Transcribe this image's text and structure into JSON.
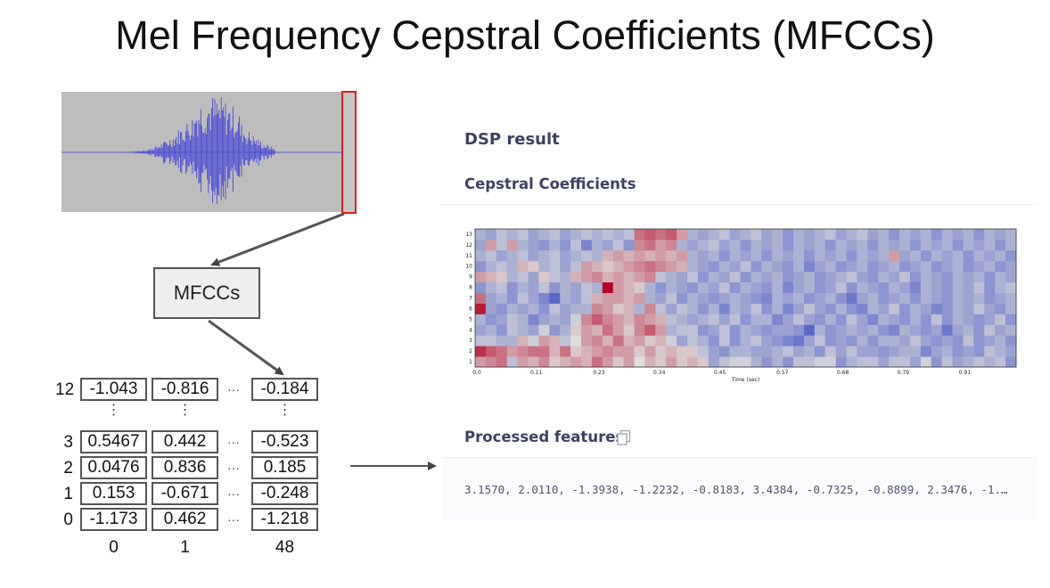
{
  "title": "Mel Frequency Cepstral Coefficients (MFCCs)",
  "mfcc_box_label": "MFCCs",
  "matrix": {
    "rows": [
      {
        "label": "12",
        "values": [
          "-1.043",
          "-0.816",
          "-0.184"
        ]
      },
      {
        "label": "3",
        "values": [
          "0.5467",
          "0.442",
          "-0.523"
        ]
      },
      {
        "label": "2",
        "values": [
          "0.0476",
          "0.836",
          "0.185"
        ]
      },
      {
        "label": "1",
        "values": [
          "0.153",
          "-0.671",
          "-0.248"
        ]
      },
      {
        "label": "0",
        "values": [
          "-1.173",
          "0.462",
          "-1.218"
        ]
      }
    ],
    "col_labels": [
      "0",
      "1",
      "48"
    ],
    "ellipsis_h": "···",
    "ellipsis_v": "⋮"
  },
  "dsp": {
    "heading": "DSP result",
    "subheading": "Cepstral Coefficients",
    "features_heading": "Processed features",
    "features_value": "3.1570, 2.0110, -1.3938, -1.2232, -0.8183, 3.4384, -0.7325, -0.8899, 2.3476, -1.…"
  },
  "chart_data": {
    "type": "heatmap",
    "xlabel": "Time (sec)",
    "ylabel": "",
    "x_ticks": [
      "0.0",
      "0.11",
      "0.23",
      "0.34",
      "0.45",
      "0.57",
      "0.68",
      "0.79",
      "0.91"
    ],
    "y_ticks": [
      "1",
      "2",
      "3",
      "4",
      "5",
      "6",
      "7",
      "8",
      "9",
      "10",
      "11",
      "12",
      "13"
    ],
    "colormap": [
      "#3b4cc0",
      "#dddddd",
      "#b40426"
    ],
    "value_range": [
      -1,
      1
    ],
    "grid": [
      [
        0.3,
        0.4,
        0.5,
        -0.2,
        0.3,
        0.2,
        0.4,
        0.1,
        0.2,
        0.3,
        0.2,
        0.5,
        0.3,
        0.1,
        0.3,
        0.0,
        0.2,
        0.1,
        0.3,
        0.1,
        0.2,
        0.1,
        -0.4,
        -0.2,
        -0.1,
        -0.1,
        -0.3,
        -0.5,
        -0.3,
        -0.5,
        -0.2,
        -0.2,
        -0.1,
        -0.1,
        -0.5,
        -0.3,
        -0.2,
        -0.2,
        -0.4,
        -0.2,
        -0.2,
        -0.4,
        -0.1,
        -0.5,
        -0.2,
        -0.4,
        -0.3,
        -0.2,
        -0.3,
        -0.2,
        -0.5
      ],
      [
        0.8,
        0.6,
        0.5,
        0.3,
        0.4,
        0.5,
        0.5,
        0.2,
        0.5,
        0.1,
        0.2,
        0.3,
        0.4,
        0.3,
        0.3,
        0.1,
        0.3,
        0.1,
        0.2,
        0.1,
        0.1,
        -0.2,
        -0.4,
        -0.5,
        -0.3,
        -0.3,
        -0.4,
        -0.4,
        -0.3,
        -0.2,
        -0.4,
        -0.3,
        -0.5,
        -0.2,
        -0.4,
        -0.2,
        -0.4,
        -0.4,
        -0.5,
        -0.4,
        -0.3,
        -0.3,
        -0.6,
        -0.4,
        -0.3,
        -0.5,
        -0.4,
        -0.5,
        -0.2,
        -0.3,
        -0.4
      ],
      [
        -0.2,
        -0.2,
        -0.3,
        -0.3,
        0.2,
        -0.1,
        0.3,
        0.2,
        -0.2,
        0.0,
        0.3,
        0.4,
        0.2,
        0.5,
        0.2,
        0.3,
        0.1,
        0.2,
        -0.1,
        -0.4,
        -0.2,
        -0.3,
        -0.5,
        -0.2,
        -0.5,
        -0.3,
        -0.2,
        -0.4,
        -0.5,
        -0.6,
        -0.7,
        -0.4,
        -0.2,
        -0.5,
        -0.4,
        -0.5,
        -0.3,
        -0.5,
        -0.3,
        -0.3,
        -0.4,
        -0.2,
        -0.4,
        -0.5,
        -0.4,
        -0.5,
        -0.2,
        -0.5,
        -0.4,
        -0.3,
        -0.5
      ],
      [
        -0.4,
        -0.3,
        -0.5,
        -0.2,
        -0.3,
        -0.4,
        -0.1,
        -0.5,
        -0.3,
        0.1,
        0.3,
        0.2,
        0.5,
        0.3,
        0.1,
        0.4,
        0.6,
        0.3,
        -0.3,
        -0.2,
        -0.2,
        -0.5,
        -0.4,
        -0.2,
        -0.5,
        -0.3,
        -0.4,
        -0.5,
        -0.4,
        -0.4,
        -0.5,
        -0.8,
        -0.3,
        -0.5,
        -0.4,
        -0.3,
        -0.4,
        -0.3,
        -0.5,
        -0.6,
        -0.3,
        -0.4,
        -0.5,
        -0.4,
        -0.7,
        -0.4,
        -0.3,
        -0.5,
        -0.2,
        -0.4,
        -0.3
      ],
      [
        -0.3,
        -0.5,
        -0.4,
        -0.2,
        -0.3,
        -0.6,
        -0.4,
        -0.3,
        -0.4,
        -0.1,
        0.4,
        0.6,
        0.4,
        0.3,
        0.2,
        0.4,
        0.3,
        0.2,
        -0.2,
        -0.3,
        -0.4,
        -0.3,
        -0.2,
        -0.4,
        -0.2,
        -0.5,
        -0.3,
        -0.3,
        -0.6,
        -0.4,
        -0.2,
        -0.4,
        -0.5,
        -0.3,
        -0.5,
        -0.2,
        -0.4,
        -0.6,
        -0.3,
        -0.4,
        -0.5,
        -0.3,
        -0.5,
        -0.2,
        -0.5,
        -0.3,
        -0.4,
        -0.5,
        -0.4,
        -0.2,
        -0.5
      ],
      [
        0.9,
        -0.4,
        -0.5,
        -0.3,
        -0.4,
        -0.3,
        -0.5,
        -0.2,
        -0.4,
        -0.3,
        -0.3,
        0.4,
        0.3,
        0.1,
        0.2,
        -0.3,
        0.4,
        -0.2,
        -0.4,
        -0.2,
        -0.3,
        -0.5,
        -0.3,
        -0.6,
        -0.3,
        -0.4,
        -0.2,
        -0.5,
        -0.3,
        -0.6,
        -0.4,
        -0.2,
        -0.4,
        -0.5,
        -0.3,
        -0.5,
        -0.6,
        -0.3,
        -0.4,
        -0.2,
        -0.5,
        -0.3,
        -0.4,
        -0.6,
        -0.5,
        -0.3,
        -0.4,
        -0.2,
        -0.4,
        -0.5,
        -0.3
      ],
      [
        0.5,
        -0.4,
        -0.3,
        -0.5,
        -0.2,
        -0.4,
        -0.6,
        -0.8,
        -0.3,
        -0.4,
        -0.2,
        0.2,
        0.3,
        0.3,
        0.2,
        0.3,
        -0.3,
        -0.4,
        -0.2,
        -0.5,
        -0.3,
        -0.4,
        -0.5,
        -0.4,
        -0.3,
        -0.4,
        -0.5,
        -0.6,
        -0.3,
        -0.4,
        -0.3,
        -0.5,
        -0.4,
        -0.3,
        -0.5,
        -0.7,
        -0.4,
        -0.3,
        -0.5,
        -0.4,
        -0.3,
        -0.5,
        -0.3,
        -0.4,
        -0.5,
        -0.3,
        -0.4,
        -0.3,
        -0.5,
        -0.4,
        -0.3
      ],
      [
        -0.5,
        -0.3,
        -0.2,
        -0.5,
        -0.3,
        -0.4,
        -0.2,
        -0.5,
        -0.3,
        -0.4,
        -0.2,
        -0.3,
        1.0,
        0.3,
        0.2,
        0.1,
        -0.3,
        -0.5,
        -0.3,
        -0.4,
        -0.5,
        -0.3,
        -0.4,
        -0.2,
        -0.5,
        -0.3,
        -0.4,
        -0.5,
        -0.3,
        -0.6,
        -0.4,
        -0.3,
        -0.5,
        -0.4,
        -0.2,
        -0.5,
        -0.3,
        -0.4,
        -0.5,
        -0.3,
        -0.4,
        -0.6,
        -0.3,
        -0.4,
        -0.5,
        -0.3,
        -0.4,
        -0.2,
        -0.5,
        -0.3,
        -0.2
      ],
      [
        0.3,
        0.2,
        0.1,
        -0.3,
        -0.2,
        -0.4,
        0.1,
        -0.2,
        -0.3,
        0.2,
        0.3,
        0.4,
        0.2,
        0.3,
        0.2,
        0.3,
        0.4,
        -0.2,
        -0.3,
        -0.4,
        -0.2,
        -0.5,
        -0.3,
        -0.4,
        -0.2,
        -0.5,
        -0.3,
        -0.4,
        -0.3,
        -0.5,
        -0.4,
        -0.3,
        -0.5,
        -0.4,
        -0.3,
        -0.2,
        -0.4,
        -0.5,
        -0.3,
        -0.4,
        -0.2,
        -0.5,
        -0.3,
        -0.4,
        -0.5,
        -0.3,
        -0.4,
        -0.3,
        -0.5,
        -0.3,
        -0.4
      ],
      [
        -0.5,
        -0.3,
        -0.2,
        -0.3,
        0.2,
        0.1,
        -0.3,
        -0.2,
        -0.4,
        -0.2,
        0.3,
        0.2,
        0.1,
        0.2,
        0.3,
        0.4,
        0.5,
        0.4,
        0.3,
        0.2,
        -0.3,
        -0.4,
        -0.5,
        -0.3,
        -0.4,
        -0.2,
        -0.5,
        -0.3,
        -0.4,
        -0.5,
        -0.3,
        -0.6,
        -0.4,
        -0.3,
        -0.5,
        -0.4,
        -0.3,
        -0.5,
        -0.4,
        -0.3,
        -0.5,
        -0.4,
        -0.3,
        -0.5,
        -0.4,
        -0.3,
        -0.5,
        -0.4,
        -0.3,
        -0.5,
        -0.4
      ],
      [
        -0.3,
        -0.2,
        -0.4,
        -0.3,
        -0.2,
        -0.4,
        -0.3,
        -0.2,
        -0.4,
        -0.3,
        -0.2,
        -0.3,
        0.2,
        0.3,
        0.2,
        0.3,
        0.2,
        0.3,
        0.2,
        0.3,
        -0.3,
        -0.4,
        -0.3,
        -0.5,
        -0.3,
        -0.4,
        -0.3,
        -0.5,
        -0.3,
        -0.4,
        -0.3,
        -0.5,
        -0.3,
        -0.4,
        -0.3,
        -0.5,
        -0.3,
        -0.4,
        -0.3,
        0.3,
        -0.4,
        -0.3,
        -0.5,
        -0.3,
        -0.4,
        -0.3,
        -0.5,
        -0.3,
        -0.4,
        -0.3,
        -0.5
      ],
      [
        -0.4,
        0.3,
        -0.2,
        0.3,
        -0.3,
        -0.4,
        -0.5,
        -0.3,
        -0.5,
        -0.2,
        -0.6,
        -0.3,
        -0.4,
        -0.2,
        -0.5,
        0.4,
        0.5,
        0.3,
        0.4,
        -0.3,
        -0.4,
        -0.3,
        -0.2,
        -0.4,
        -0.3,
        -0.5,
        -0.3,
        -0.4,
        -0.3,
        -0.5,
        -0.3,
        -0.4,
        -0.3,
        -0.5,
        -0.3,
        -0.4,
        -0.3,
        -0.5,
        -0.3,
        -0.4,
        -0.3,
        -0.5,
        -0.3,
        -0.4,
        -0.3,
        -0.5,
        -0.3,
        -0.4,
        -0.3,
        -0.5,
        -0.3
      ],
      [
        -0.3,
        -0.4,
        -0.2,
        -0.3,
        -0.2,
        -0.4,
        -0.3,
        -0.2,
        -0.4,
        -0.3,
        -0.2,
        -0.3,
        -0.2,
        -0.3,
        -0.2,
        0.5,
        0.6,
        0.5,
        0.6,
        0.3,
        -0.3,
        -0.4,
        -0.3,
        -0.2,
        -0.4,
        -0.3,
        -0.2,
        -0.4,
        -0.3,
        -0.5,
        -0.3,
        -0.4,
        -0.3,
        -0.2,
        -0.4,
        -0.3,
        -0.2,
        -0.4,
        -0.3,
        -0.5,
        -0.3,
        -0.4,
        -0.3,
        -0.5,
        -0.3,
        -0.4,
        -0.3,
        -0.5,
        -0.3,
        -0.4,
        -0.3
      ]
    ]
  }
}
